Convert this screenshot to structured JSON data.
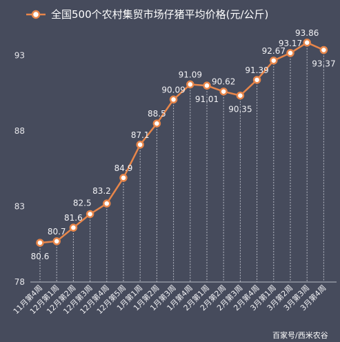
{
  "chart_data": {
    "type": "line",
    "legend": "全国500个农村集贸市场仔猪平均价格(元/公斤)",
    "legend_position": "top-center",
    "categories": [
      "11月第4周",
      "12月第1周",
      "12月第2周",
      "12月第3周",
      "12月第4周",
      "12月第5周",
      "1月第1周",
      "1月第2周",
      "1月第3周",
      "1月第4周",
      "2月第1周",
      "2月第2周",
      "2月第3周",
      "2月第4周",
      "3月第1周",
      "3月第2周",
      "3月第3周",
      "3月第4周"
    ],
    "values": [
      80.6,
      80.7,
      81.6,
      82.5,
      83.2,
      84.9,
      87.1,
      88.5,
      90.09,
      91.09,
      91.01,
      90.62,
      90.35,
      91.39,
      92.67,
      93.17,
      93.86,
      93.37
    ],
    "data_labels": [
      "80.6",
      "80.7",
      "81.6",
      "82.5",
      "83.2",
      "84.9",
      "87.1",
      "88.5",
      "90.09",
      "91.09",
      "91.01",
      "90.62",
      "90.35",
      "91.39",
      "92.67",
      "93.17",
      "93.86",
      "93.37"
    ],
    "y_ticks": [
      "78",
      "83",
      "88",
      "93"
    ],
    "ylim": [
      78,
      94.9
    ],
    "grid": "vertical-dotted",
    "colors": {
      "background": "#464b5c",
      "line": "#e8864a",
      "marker_fill": "#ffffff",
      "grid": "#b8bcc6",
      "text": "#f0f0f3"
    }
  },
  "watermark": "百家号/西米农谷"
}
